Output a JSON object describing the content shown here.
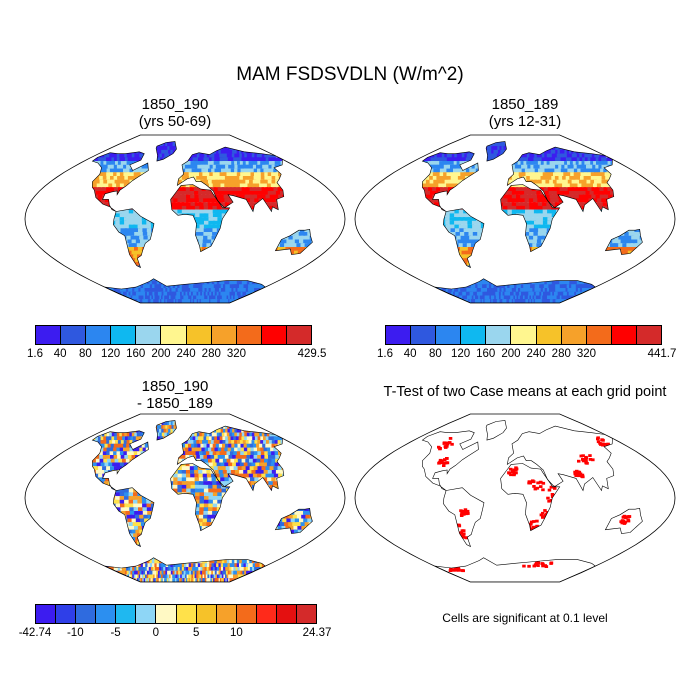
{
  "title": "MAM FSDSVDLN (W/m^2)",
  "panels": {
    "case_a": {
      "name": "1850_190",
      "subtitle": "(yrs 50-69)"
    },
    "case_b": {
      "name": "1850_189",
      "subtitle": "(yrs 12-31)"
    },
    "difference": {
      "line1": "1850_190",
      "line2": "- 1850_189"
    },
    "ttest": {
      "title": "T-Test of two Case means at each grid point",
      "note": "Cells are significant at 0.1 level",
      "highlight_color": "#ff0000"
    }
  },
  "colorbars": {
    "case_a": {
      "colors": [
        "#3c1cf0",
        "#2f58df",
        "#2c86f0",
        "#0fb8f0",
        "#9ad6ee",
        "#fff68f",
        "#f6c229",
        "#f6a12a",
        "#f36b1b",
        "#ff0000",
        "#d42a2a"
      ],
      "labels": [
        "1.6",
        "40",
        "80",
        "120",
        "160",
        "200",
        "240",
        "280",
        "320",
        "",
        "429.5"
      ]
    },
    "case_b": {
      "colors": [
        "#3c1cf0",
        "#2f58df",
        "#2c86f0",
        "#0fb8f0",
        "#9ad6ee",
        "#fff68f",
        "#f6c229",
        "#f6a12a",
        "#f36b1b",
        "#ff0000",
        "#d42a2a"
      ],
      "labels": [
        "1.6",
        "40",
        "80",
        "120",
        "160",
        "200",
        "240",
        "280",
        "320",
        "",
        "441.7"
      ]
    },
    "difference": {
      "colors": [
        "#3c1cf0",
        "#2f3fe8",
        "#2f6bdf",
        "#2c8ff0",
        "#1fb8f0",
        "#8ed6f6",
        "#fff9c4",
        "#ffe14a",
        "#f6c229",
        "#f6a12a",
        "#f36b1b",
        "#ff2a1a",
        "#e41010",
        "#d42a2a"
      ],
      "labels": [
        "-42.74",
        "",
        "-10",
        "",
        "-5",
        "",
        "0",
        "",
        "5",
        "",
        "10",
        "",
        "",
        "24.37"
      ]
    }
  }
}
